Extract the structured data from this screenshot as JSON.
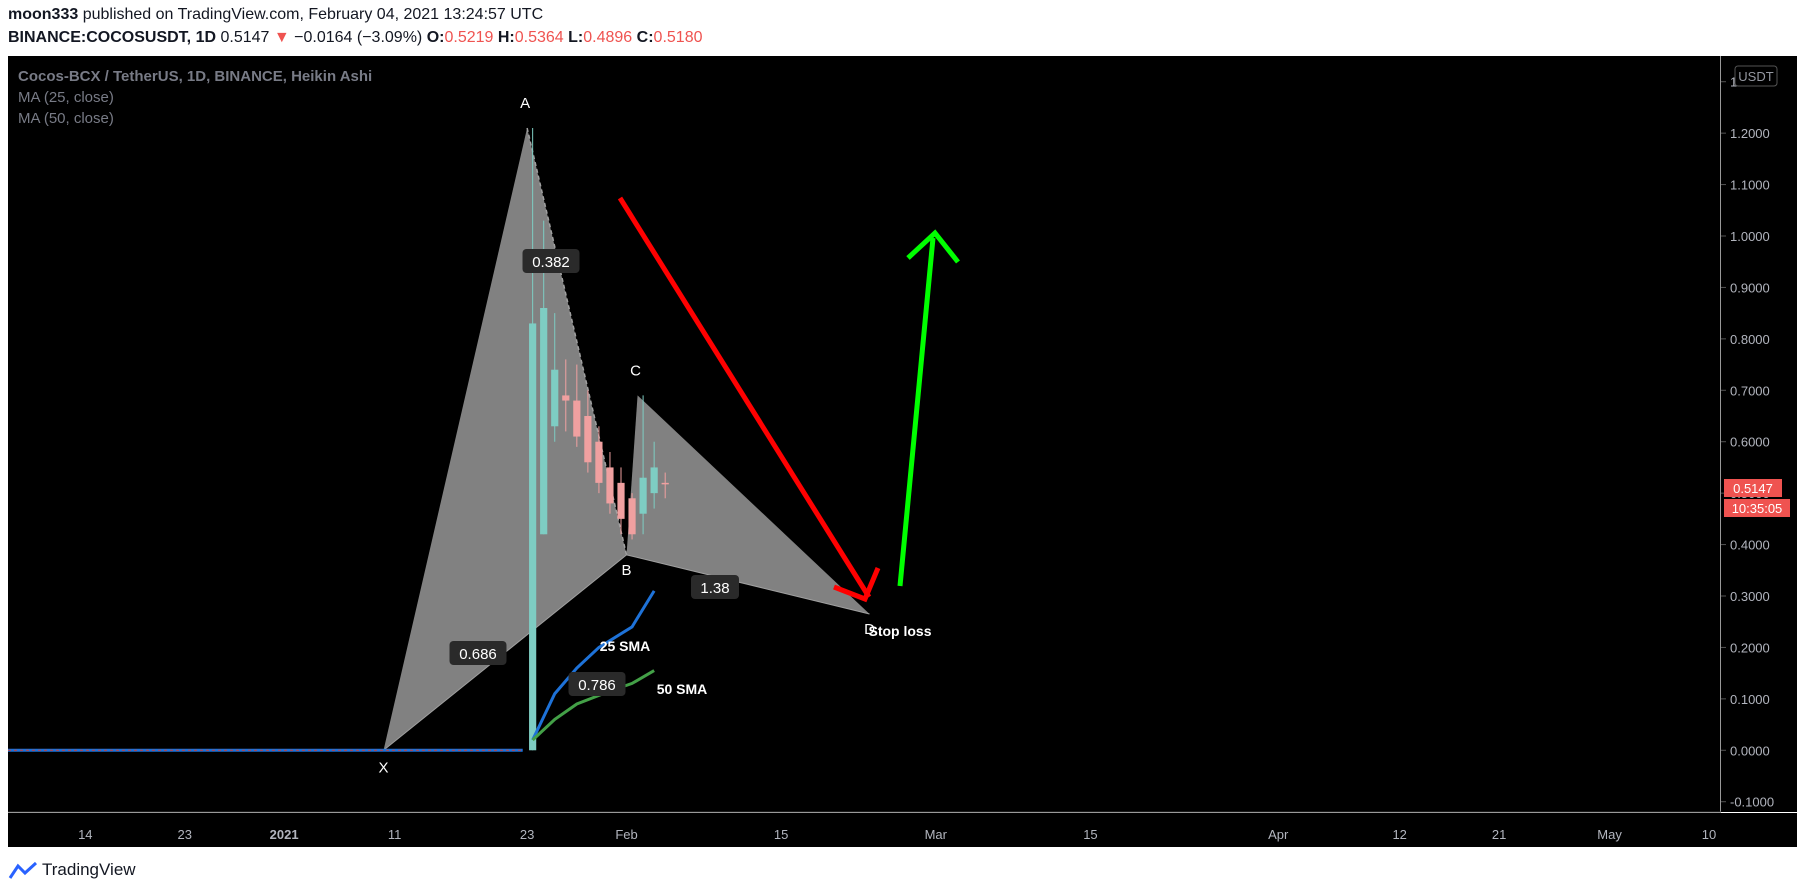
{
  "header": {
    "author": "moon333",
    "published_text": "published on TradingView.com, February 04, 2021 13:24:57 UTC",
    "symbol": "BINANCE:COCOSUSDT, 1D",
    "last": "0.5147",
    "change": "−0.0164 (−3.09%)",
    "o_label": "O:",
    "o": "0.5219",
    "h_label": "H:",
    "h": "0.5364",
    "l_label": "L:",
    "l": "0.4896",
    "c_label": "C:",
    "c": "0.5180"
  },
  "legend": {
    "title": "Cocos-BCX / TetherUS, 1D, BINANCE, Heikin Ashi",
    "ma25": "MA (25, close)",
    "ma50": "MA (50, close)"
  },
  "currency_label": "USDT",
  "price_tag": "0.5147",
  "countdown_tag": "10:35:05",
  "footer_brand": "TradingView",
  "colors": {
    "bg": "#000000",
    "up": "#7ecdc3",
    "down": "#f0a0a0",
    "pattern": "#8c8c8c",
    "ma25": "#1e72d8",
    "ma50": "#43a047",
    "red_arrow": "#ff0000",
    "green_arrow": "#00ff00",
    "price_tag": "#ef5350"
  },
  "chart_data": {
    "type": "candlestick",
    "style": "Heikin Ashi",
    "ylim": [
      -0.12,
      1.35
    ],
    "y_ticks": [
      "-0.1000",
      "0.0000",
      "0.1000",
      "0.2000",
      "0.3000",
      "0.4000",
      "0.5000",
      "0.6000",
      "0.7000",
      "0.8000",
      "0.9000",
      "1.0000",
      "1.1000",
      "1.2000",
      "1.3000"
    ],
    "x_range": [
      "2020-12-07",
      "2021-05-11"
    ],
    "x_ticks": [
      {
        "label": "14",
        "date": "2020-12-14",
        "bold": false
      },
      {
        "label": "23",
        "date": "2020-12-23",
        "bold": false
      },
      {
        "label": "2021",
        "date": "2021-01-01",
        "bold": true
      },
      {
        "label": "11",
        "date": "2021-01-11",
        "bold": false
      },
      {
        "label": "23",
        "date": "2021-01-23",
        "bold": false
      },
      {
        "label": "Feb",
        "date": "2021-02-01",
        "bold": false
      },
      {
        "label": "15",
        "date": "2021-02-15",
        "bold": false
      },
      {
        "label": "Mar",
        "date": "2021-03-01",
        "bold": false
      },
      {
        "label": "15",
        "date": "2021-03-15",
        "bold": false
      },
      {
        "label": "Apr",
        "date": "2021-04-01",
        "bold": false
      },
      {
        "label": "12",
        "date": "2021-04-12",
        "bold": false
      },
      {
        "label": "21",
        "date": "2021-04-21",
        "bold": false
      },
      {
        "label": "May",
        "date": "2021-05-01",
        "bold": false
      },
      {
        "label": "10",
        "date": "2021-05-10",
        "bold": false
      }
    ],
    "flat_series": {
      "from": "2020-12-07",
      "to": "2021-01-22",
      "value": 0.0
    },
    "candles": [
      {
        "date": "2021-01-23",
        "o": 0.0,
        "h": 1.21,
        "l": 0.0,
        "c": 0.83
      },
      {
        "date": "2021-01-24",
        "o": 0.42,
        "h": 1.03,
        "l": 0.42,
        "c": 0.86
      },
      {
        "date": "2021-01-25",
        "o": 0.63,
        "h": 0.85,
        "l": 0.6,
        "c": 0.74
      },
      {
        "date": "2021-01-26",
        "o": 0.69,
        "h": 0.76,
        "l": 0.62,
        "c": 0.68
      },
      {
        "date": "2021-01-27",
        "o": 0.68,
        "h": 0.75,
        "l": 0.59,
        "c": 0.61
      },
      {
        "date": "2021-01-28",
        "o": 0.65,
        "h": 0.7,
        "l": 0.54,
        "c": 0.56
      },
      {
        "date": "2021-01-29",
        "o": 0.6,
        "h": 0.63,
        "l": 0.5,
        "c": 0.52
      },
      {
        "date": "2021-01-30",
        "o": 0.55,
        "h": 0.58,
        "l": 0.46,
        "c": 0.48
      },
      {
        "date": "2021-01-31",
        "o": 0.52,
        "h": 0.55,
        "l": 0.42,
        "c": 0.45
      },
      {
        "date": "2021-02-01",
        "o": 0.49,
        "h": 0.5,
        "l": 0.41,
        "c": 0.42
      },
      {
        "date": "2021-02-02",
        "o": 0.46,
        "h": 0.69,
        "l": 0.42,
        "c": 0.53
      },
      {
        "date": "2021-02-03",
        "o": 0.5,
        "h": 0.6,
        "l": 0.47,
        "c": 0.55
      },
      {
        "date": "2021-02-04",
        "o": 0.52,
        "h": 0.54,
        "l": 0.49,
        "c": 0.518
      }
    ],
    "ma25": [
      {
        "date": "2021-01-23",
        "value": 0.02
      },
      {
        "date": "2021-01-25",
        "value": 0.11
      },
      {
        "date": "2021-01-27",
        "value": 0.16
      },
      {
        "date": "2021-01-29",
        "value": 0.2
      },
      {
        "date": "2021-02-01",
        "value": 0.24
      },
      {
        "date": "2021-02-03",
        "value": 0.31
      }
    ],
    "ma50": [
      {
        "date": "2021-01-23",
        "value": 0.02
      },
      {
        "date": "2021-01-25",
        "value": 0.06
      },
      {
        "date": "2021-01-27",
        "value": 0.09
      },
      {
        "date": "2021-01-30",
        "value": 0.115
      },
      {
        "date": "2021-02-01",
        "value": 0.13
      },
      {
        "date": "2021-02-03",
        "value": 0.155
      }
    ],
    "pattern_points": [
      {
        "label": "X",
        "date": "2021-01-10",
        "price": 0.0
      },
      {
        "label": "A",
        "date": "2021-01-23",
        "price": 1.21
      },
      {
        "label": "B",
        "date": "2021-02-01",
        "price": 0.38
      },
      {
        "label": "C",
        "date": "2021-02-02",
        "price": 0.69
      },
      {
        "label": "D",
        "date": "2021-02-23",
        "price": 0.265
      }
    ],
    "ratios": [
      {
        "label": "0.382"
      },
      {
        "label": "0.686"
      },
      {
        "label": "1.38"
      },
      {
        "label": "0.786"
      }
    ],
    "annotations": [
      "25 SMA",
      "50 SMA",
      "Stop loss"
    ]
  }
}
